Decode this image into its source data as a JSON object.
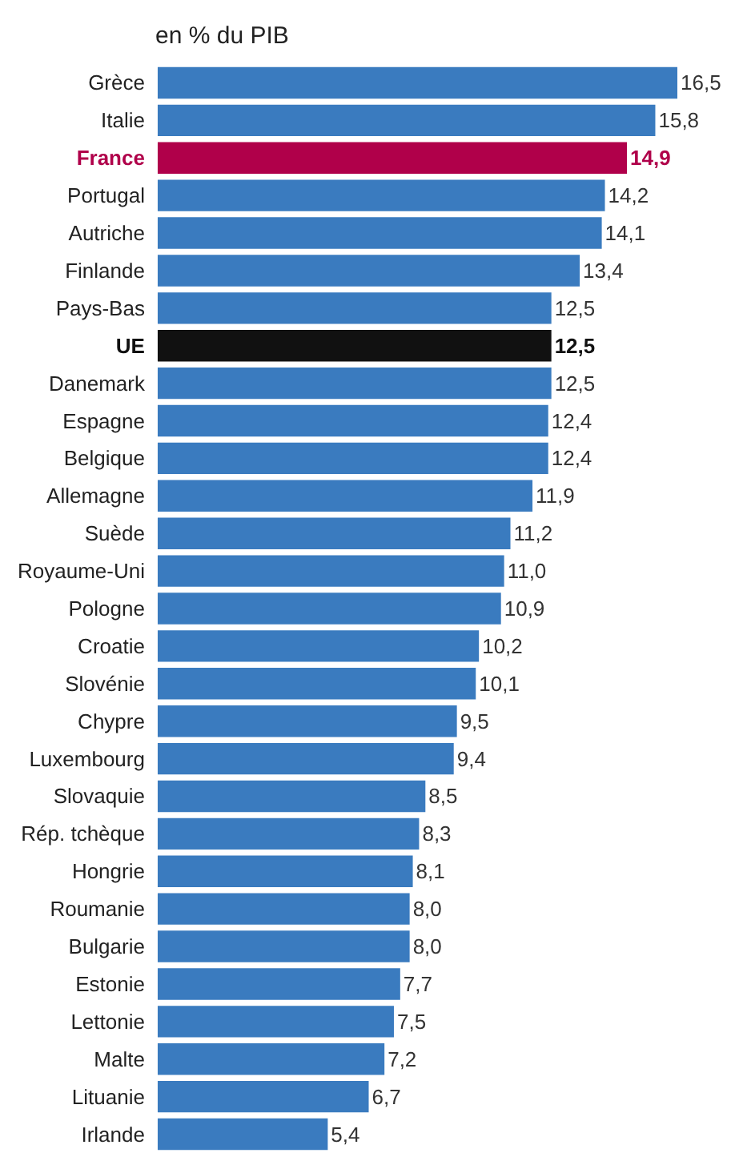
{
  "chart_data": {
    "type": "bar",
    "orientation": "horizontal",
    "title": "en % du PIB",
    "categories": [
      "Grèce",
      "Italie",
      "France",
      "Portugal",
      "Autriche",
      "Finlande",
      "Pays-Bas",
      "UE",
      "Danemark",
      "Espagne",
      "Belgique",
      "Allemagne",
      "Suède",
      "Royaume-Uni",
      "Pologne",
      "Croatie",
      "Slovénie",
      "Chypre",
      "Luxembourg",
      "Slovaquie",
      "Rép. tchèque",
      "Hongrie",
      "Roumanie",
      "Bulgarie",
      "Estonie",
      "Lettonie",
      "Malte",
      "Lituanie",
      "Irlande"
    ],
    "values": [
      16.5,
      15.8,
      14.9,
      14.2,
      14.1,
      13.4,
      12.5,
      12.5,
      12.5,
      12.4,
      12.4,
      11.9,
      11.2,
      11.0,
      10.9,
      10.2,
      10.1,
      9.5,
      9.4,
      8.5,
      8.3,
      8.1,
      8.0,
      8.0,
      7.7,
      7.5,
      7.2,
      6.7,
      5.4
    ],
    "value_labels": [
      "16,5",
      "15,8",
      "14,9",
      "14,2",
      "14,1",
      "13,4",
      "12,5",
      "12,5",
      "12,5",
      "12,4",
      "12,4",
      "11,9",
      "11,2",
      "11,0",
      "10,9",
      "10,2",
      "10,1",
      "9,5",
      "9,4",
      "8,5",
      "8,3",
      "8,1",
      "8,0",
      "8,0",
      "7,7",
      "7,5",
      "7,2",
      "6,7",
      "5,4"
    ],
    "colors": [
      "#3a7bbf",
      "#3a7bbf",
      "#b0004a",
      "#3a7bbf",
      "#3a7bbf",
      "#3a7bbf",
      "#3a7bbf",
      "#111111",
      "#3a7bbf",
      "#3a7bbf",
      "#3a7bbf",
      "#3a7bbf",
      "#3a7bbf",
      "#3a7bbf",
      "#3a7bbf",
      "#3a7bbf",
      "#3a7bbf",
      "#3a7bbf",
      "#3a7bbf",
      "#3a7bbf",
      "#3a7bbf",
      "#3a7bbf",
      "#3a7bbf",
      "#3a7bbf",
      "#3a7bbf",
      "#3a7bbf",
      "#3a7bbf",
      "#3a7bbf",
      "#3a7bbf"
    ]
  }
}
